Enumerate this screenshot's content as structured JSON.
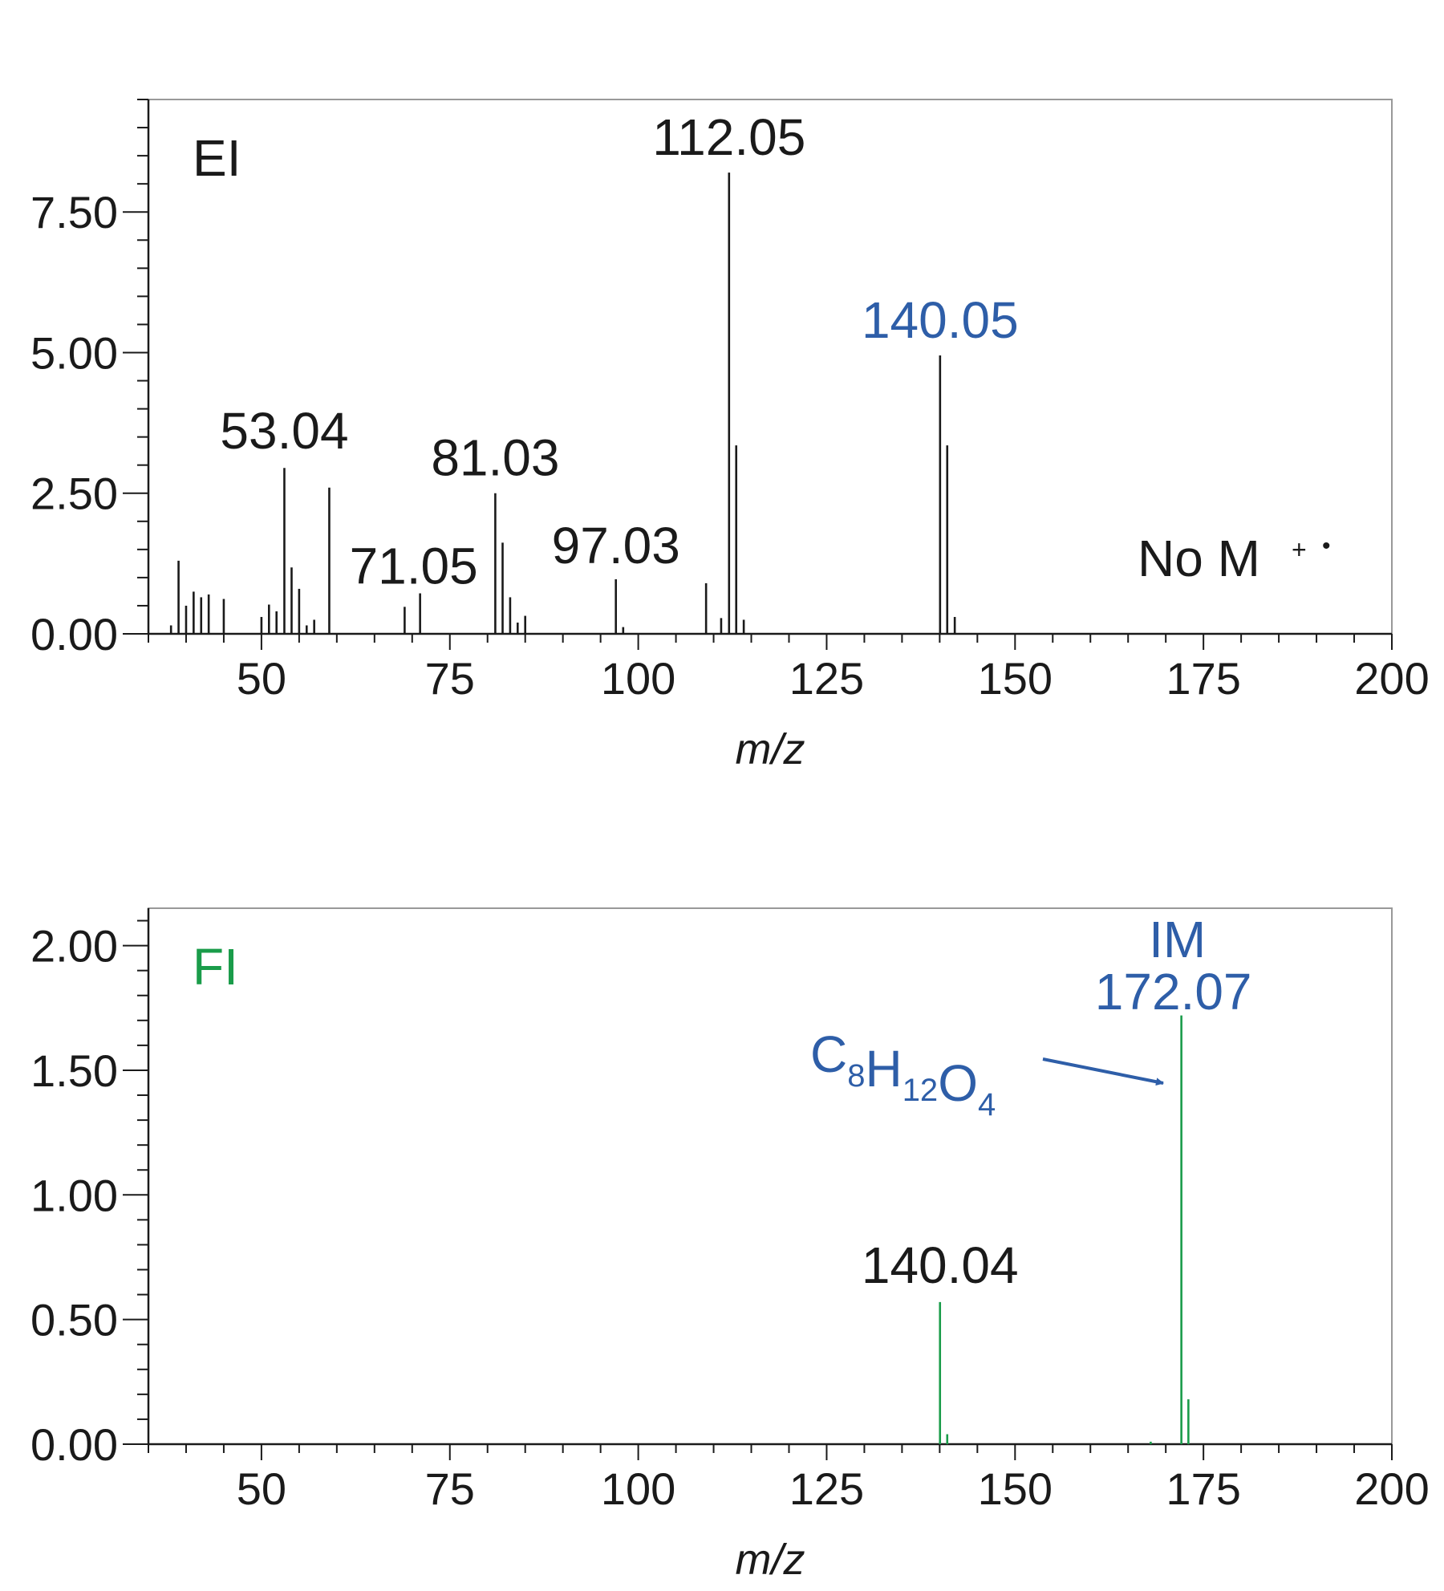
{
  "chart_data": [
    {
      "type": "bar",
      "series_name": "EI",
      "xlabel": "m/z",
      "ylabel": "",
      "xlim": [
        35,
        200
      ],
      "ylim": [
        0,
        9.5
      ],
      "xticks": [
        50,
        75,
        100,
        125,
        150,
        175,
        200
      ],
      "xtick_labels": [
        "50",
        "75",
        "100",
        "125",
        "150",
        "175",
        "200"
      ],
      "yticks": [
        0,
        2.5,
        5.0,
        7.5
      ],
      "ytick_labels": [
        "0.00",
        "2.50",
        "5.00",
        "7.50"
      ],
      "color": "#1a1a1a",
      "peaks": [
        {
          "x": 38,
          "y": 0.15
        },
        {
          "x": 39,
          "y": 1.3
        },
        {
          "x": 40,
          "y": 0.5
        },
        {
          "x": 41,
          "y": 0.75
        },
        {
          "x": 42,
          "y": 0.65
        },
        {
          "x": 43,
          "y": 0.7
        },
        {
          "x": 45,
          "y": 0.62
        },
        {
          "x": 50,
          "y": 0.3
        },
        {
          "x": 51,
          "y": 0.52
        },
        {
          "x": 52,
          "y": 0.4
        },
        {
          "x": 53.04,
          "y": 2.95
        },
        {
          "x": 54,
          "y": 1.18
        },
        {
          "x": 55,
          "y": 0.8
        },
        {
          "x": 56,
          "y": 0.15
        },
        {
          "x": 57,
          "y": 0.25
        },
        {
          "x": 59,
          "y": 2.6
        },
        {
          "x": 69,
          "y": 0.48
        },
        {
          "x": 71.05,
          "y": 0.72
        },
        {
          "x": 81.03,
          "y": 2.5
        },
        {
          "x": 82,
          "y": 1.62
        },
        {
          "x": 83,
          "y": 0.65
        },
        {
          "x": 84,
          "y": 0.2
        },
        {
          "x": 85,
          "y": 0.32
        },
        {
          "x": 97.03,
          "y": 0.97
        },
        {
          "x": 98,
          "y": 0.12
        },
        {
          "x": 109,
          "y": 0.9
        },
        {
          "x": 111,
          "y": 0.28
        },
        {
          "x": 112.05,
          "y": 8.2
        },
        {
          "x": 113,
          "y": 3.35
        },
        {
          "x": 114,
          "y": 0.25
        },
        {
          "x": 140.05,
          "y": 4.95
        },
        {
          "x": 141,
          "y": 3.35
        },
        {
          "x": 142,
          "y": 0.3
        }
      ],
      "annotations": [
        {
          "text": "EI",
          "role": "mode"
        },
        {
          "text": "112.05",
          "x": 112.05,
          "color": "#1a1a1a"
        },
        {
          "text": "140.05",
          "x": 140.05,
          "color": "#2e5ea8"
        },
        {
          "text": "53.04",
          "x": 53.04,
          "color": "#1a1a1a"
        },
        {
          "text": "81.03",
          "x": 81.03,
          "color": "#1a1a1a"
        },
        {
          "text": "71.05",
          "x": 71.05,
          "color": "#1a1a1a"
        },
        {
          "text": "97.03",
          "x": 97.03,
          "color": "#1a1a1a"
        },
        {
          "text": "No M",
          "sup": "+",
          "dot": "•",
          "role": "note"
        }
      ]
    },
    {
      "type": "bar",
      "series_name": "FI",
      "xlabel": "m/z",
      "ylabel": "",
      "xlim": [
        35,
        200
      ],
      "ylim": [
        0,
        2.15
      ],
      "xticks": [
        50,
        75,
        100,
        125,
        150,
        175,
        200
      ],
      "xtick_labels": [
        "50",
        "75",
        "100",
        "125",
        "150",
        "175",
        "200"
      ],
      "yticks": [
        0,
        0.5,
        1.0,
        1.5,
        2.0
      ],
      "ytick_labels": [
        "0.00",
        "0.50",
        "1.00",
        "1.50",
        "2.00"
      ],
      "color": "#1a9c4a",
      "peaks": [
        {
          "x": 140.04,
          "y": 0.57
        },
        {
          "x": 141,
          "y": 0.04
        },
        {
          "x": 168,
          "y": 0.01
        },
        {
          "x": 172.07,
          "y": 1.72
        },
        {
          "x": 173,
          "y": 0.18
        }
      ],
      "annotations": [
        {
          "text": "FI",
          "role": "mode",
          "color": "#1a9c4a"
        },
        {
          "text": "IM",
          "x": 172.07,
          "color": "#2e5ea8"
        },
        {
          "text": "172.07",
          "x": 172.07,
          "color": "#2e5ea8"
        },
        {
          "text": "140.04",
          "x": 140.04,
          "color": "#1a1a1a"
        }
      ],
      "formula": {
        "parts": [
          {
            "t": "C",
            "s": "8"
          },
          {
            "t": "H",
            "s": "12"
          },
          {
            "t": "O",
            "s": "4"
          }
        ],
        "color": "#2e5ea8",
        "arrow_target_x": 172.07
      }
    }
  ]
}
